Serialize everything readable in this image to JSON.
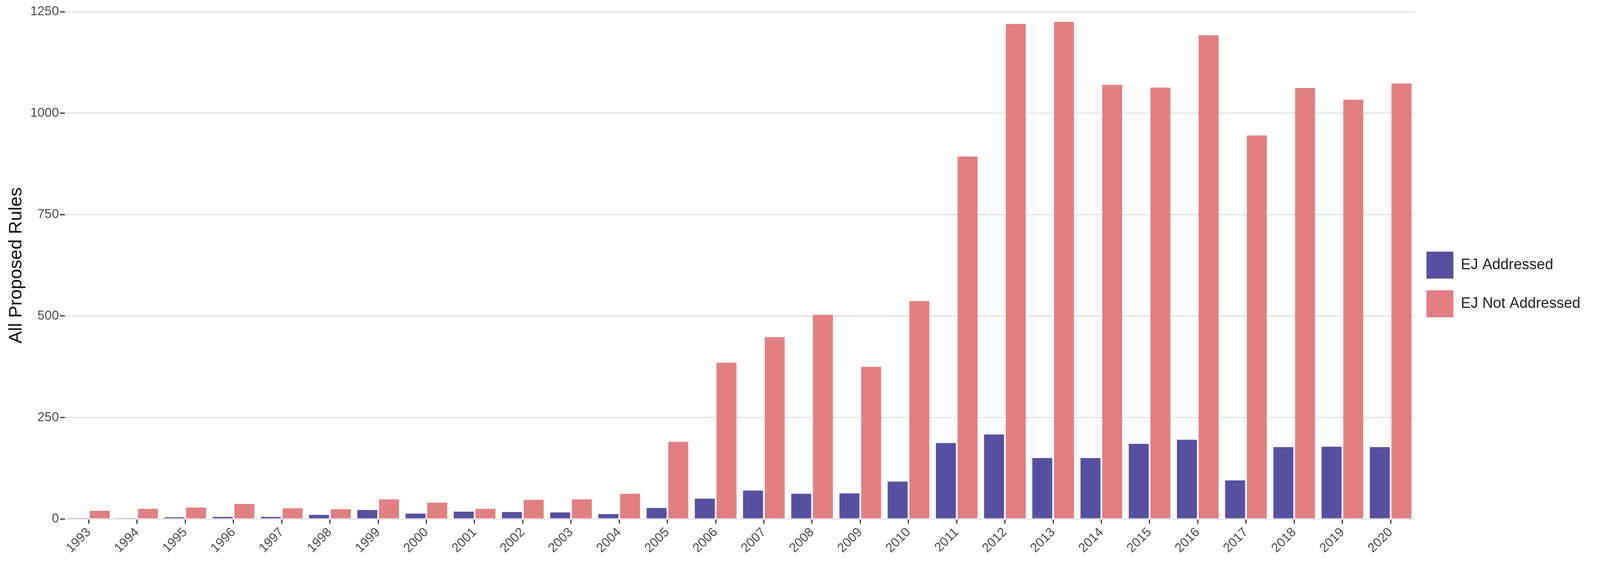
{
  "chart_data": {
    "type": "bar",
    "y_label": "All Proposed Rules",
    "categories": [
      "1993",
      "1994",
      "1995",
      "1996",
      "1997",
      "1998",
      "1999",
      "2000",
      "2001",
      "2002",
      "2003",
      "2004",
      "2005",
      "2006",
      "2007",
      "2008",
      "2009",
      "2010",
      "2011",
      "2012",
      "2013",
      "2014",
      "2015",
      "2016",
      "2017",
      "2018",
      "2019",
      "2020"
    ],
    "series": [
      {
        "name": "EJ Addressed",
        "color": "#574fa0",
        "values": [
          1,
          2,
          4,
          5,
          5,
          10,
          22,
          13,
          18,
          17,
          16,
          12,
          27,
          50,
          70,
          62,
          63,
          92,
          187,
          208,
          150,
          150,
          185,
          195,
          95,
          177,
          178,
          177
        ]
      },
      {
        "name": "EJ Not Addressed",
        "color": "#e27f81",
        "values": [
          20,
          25,
          28,
          37,
          26,
          24,
          48,
          40,
          25,
          47,
          48,
          62,
          190,
          385,
          448,
          503,
          375,
          537,
          893,
          1220,
          1225,
          1070,
          1063,
          1192,
          945,
          1062,
          1033,
          1073
        ]
      }
    ],
    "ylim": [
      0,
      1250
    ],
    "yticks": [
      0,
      250,
      500,
      750,
      1000,
      1250
    ],
    "grid": true,
    "legend": "right"
  }
}
